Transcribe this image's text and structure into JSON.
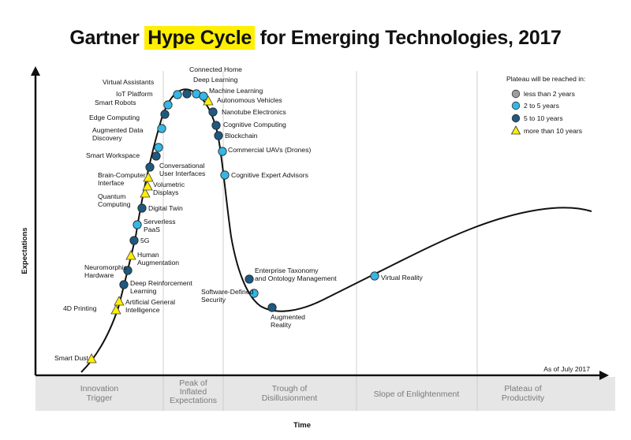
{
  "title": {
    "prefix": "Gartner",
    "highlight": "Hype Cycle",
    "suffix": "for Emerging Technologies, 2017"
  },
  "colors": {
    "less_than_2": "#9e9e9e",
    "two_to_five": "#36b6e6",
    "five_to_ten": "#1e5a80",
    "more_than_ten": "#ffef00",
    "highlight": "#ffef00",
    "phase_band": "#e6e6e6"
  },
  "axes": {
    "y_label": "Expectations",
    "x_label": "Time"
  },
  "legend": {
    "title": "Plateau will be reached in:",
    "items": [
      {
        "label": "less than 2 years",
        "category": "less_than_2"
      },
      {
        "label": "2 to 5 years",
        "category": "two_to_five"
      },
      {
        "label": "5 to 10 years",
        "category": "five_to_ten"
      },
      {
        "label": "more than 10 years",
        "category": "more_than_ten"
      }
    ]
  },
  "as_of": "As of July 2017",
  "phases": [
    [
      "Innovation",
      "Trigger"
    ],
    [
      "Peak of",
      "Inflated",
      "Expectations"
    ],
    [
      "Trough of",
      "Disillusionment"
    ],
    [
      "Slope of Enlightenment"
    ],
    [
      "Plateau of",
      "Productivity"
    ]
  ],
  "technologies": [
    {
      "name": [
        "Smart Dust"
      ],
      "category": "more_than_ten"
    },
    {
      "name": [
        "4D Printing"
      ],
      "category": "more_than_ten"
    },
    {
      "name": [
        "Artificial General",
        "Intelligence"
      ],
      "category": "more_than_ten"
    },
    {
      "name": [
        "Deep Reinforcement",
        "Learning"
      ],
      "category": "five_to_ten"
    },
    {
      "name": [
        "Neuromorphic",
        "Hardware"
      ],
      "category": "five_to_ten"
    },
    {
      "name": [
        "Human",
        "Augmentation"
      ],
      "category": "more_than_ten"
    },
    {
      "name": [
        "5G"
      ],
      "category": "five_to_ten"
    },
    {
      "name": [
        "Serverless",
        "PaaS"
      ],
      "category": "two_to_five"
    },
    {
      "name": [
        "Digital Twin"
      ],
      "category": "five_to_ten"
    },
    {
      "name": [
        "Quantum",
        "Computing"
      ],
      "category": "more_than_ten"
    },
    {
      "name": [
        "Volumetric",
        "Displays"
      ],
      "category": "more_than_ten"
    },
    {
      "name": [
        "Brain-Computer",
        "Interface"
      ],
      "category": "more_than_ten"
    },
    {
      "name": [
        "Conversational",
        "User Interfaces"
      ],
      "category": "five_to_ten"
    },
    {
      "name": [
        "Smart Workspace"
      ],
      "category": "five_to_ten"
    },
    {
      "name": [
        "Augmented Data",
        "Discovery"
      ],
      "category": "two_to_five"
    },
    {
      "name": [
        "Edge Computing"
      ],
      "category": "two_to_five"
    },
    {
      "name": [
        "Smart Robots"
      ],
      "category": "five_to_ten"
    },
    {
      "name": [
        "IoT Platform"
      ],
      "category": "two_to_five"
    },
    {
      "name": [
        "Virtual Assistants"
      ],
      "category": "two_to_five"
    },
    {
      "name": [
        "Connected Home"
      ],
      "category": "five_to_ten"
    },
    {
      "name": [
        "Deep Learning"
      ],
      "category": "two_to_five"
    },
    {
      "name": [
        "Machine Learning"
      ],
      "category": "two_to_five"
    },
    {
      "name": [
        "Autonomous Vehicles"
      ],
      "category": "more_than_ten"
    },
    {
      "name": [
        "Nanotube Electronics"
      ],
      "category": "five_to_ten"
    },
    {
      "name": [
        "Cognitive Computing"
      ],
      "category": "five_to_ten"
    },
    {
      "name": [
        "Blockchain"
      ],
      "category": "five_to_ten"
    },
    {
      "name": [
        "Commercial UAVs (Drones)"
      ],
      "category": "two_to_five"
    },
    {
      "name": [
        "Cognitive Expert Advisors"
      ],
      "category": "two_to_five"
    },
    {
      "name": [
        "Enterprise Taxonomy",
        "and Ontology Management"
      ],
      "category": "five_to_ten"
    },
    {
      "name": [
        "Software-Defined",
        "Security"
      ],
      "category": "two_to_five"
    },
    {
      "name": [
        "Augmented",
        "Reality"
      ],
      "category": "five_to_ten"
    },
    {
      "name": [
        "Virtual Reality"
      ],
      "category": "two_to_five"
    }
  ]
}
